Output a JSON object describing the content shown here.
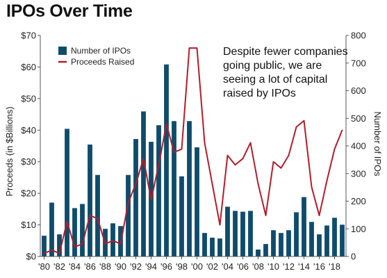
{
  "chart_data": {
    "type": "bar+line",
    "title": "IPOs Over Time",
    "x": [
      "1980",
      "1981",
      "1982",
      "1983",
      "1984",
      "1985",
      "1986",
      "1987",
      "1988",
      "1989",
      "1990",
      "1991",
      "1992",
      "1993",
      "1994",
      "1995",
      "1996",
      "1997",
      "1998",
      "1999",
      "2000",
      "2001",
      "2002",
      "2003",
      "2004",
      "2005",
      "2006",
      "2007",
      "2008",
      "2009",
      "2010",
      "2011",
      "2012",
      "2013",
      "2014",
      "2015",
      "2016",
      "2017",
      "2018",
      "2019"
    ],
    "x_tick_labels": [
      "'80",
      "'82",
      "'84",
      "'86",
      "'88",
      "'90",
      "'92",
      "'94",
      "'96",
      "'98",
      "'00",
      "'02",
      "'04",
      "'06",
      "'08",
      "'10",
      "'12",
      "'14",
      "'16",
      "'18"
    ],
    "series": [
      {
        "name": "Number of IPOs",
        "type": "bar",
        "axis": "right",
        "color": "#0f4c6b",
        "values": [
          75,
          195,
          80,
          462,
          175,
          190,
          405,
          295,
          100,
          120,
          110,
          295,
          425,
          525,
          415,
          475,
          695,
          490,
          290,
          490,
          395,
          85,
          68,
          65,
          180,
          165,
          162,
          165,
          25,
          45,
          95,
          85,
          95,
          160,
          215,
          125,
          80,
          112,
          140,
          115
        ]
      },
      {
        "name": "Proceeds Raised",
        "type": "line",
        "axis": "left",
        "color": "#b11d2a",
        "values": [
          1,
          2,
          1,
          11,
          3,
          4,
          13,
          12,
          4,
          5,
          4,
          17,
          23,
          31,
          18,
          29,
          42,
          33,
          34,
          66,
          66,
          36,
          23,
          10,
          32,
          29,
          31,
          36,
          23,
          13,
          30,
          28,
          32,
          41,
          43,
          22,
          13,
          24,
          34,
          40
        ]
      }
    ],
    "left_axis": {
      "label": "Proceeds (in $Billions)",
      "range": [
        0,
        70
      ],
      "ticks": [
        "$0",
        "$10",
        "$20",
        "$30",
        "$40",
        "$50",
        "$60",
        "$70"
      ]
    },
    "right_axis": {
      "label": "Number of IPOs",
      "range": [
        0,
        800
      ],
      "ticks": [
        "0",
        "100",
        "200",
        "300",
        "400",
        "500",
        "600",
        "700",
        "800"
      ]
    },
    "legend": {
      "placement": "top-left",
      "entries": [
        "Number of IPOs",
        "Proceeds Raised"
      ]
    },
    "annotation": [
      "Despite fewer companies",
      "going public, we are",
      "seeing a lot of capital",
      "raised by IPOs"
    ],
    "grid": false
  }
}
